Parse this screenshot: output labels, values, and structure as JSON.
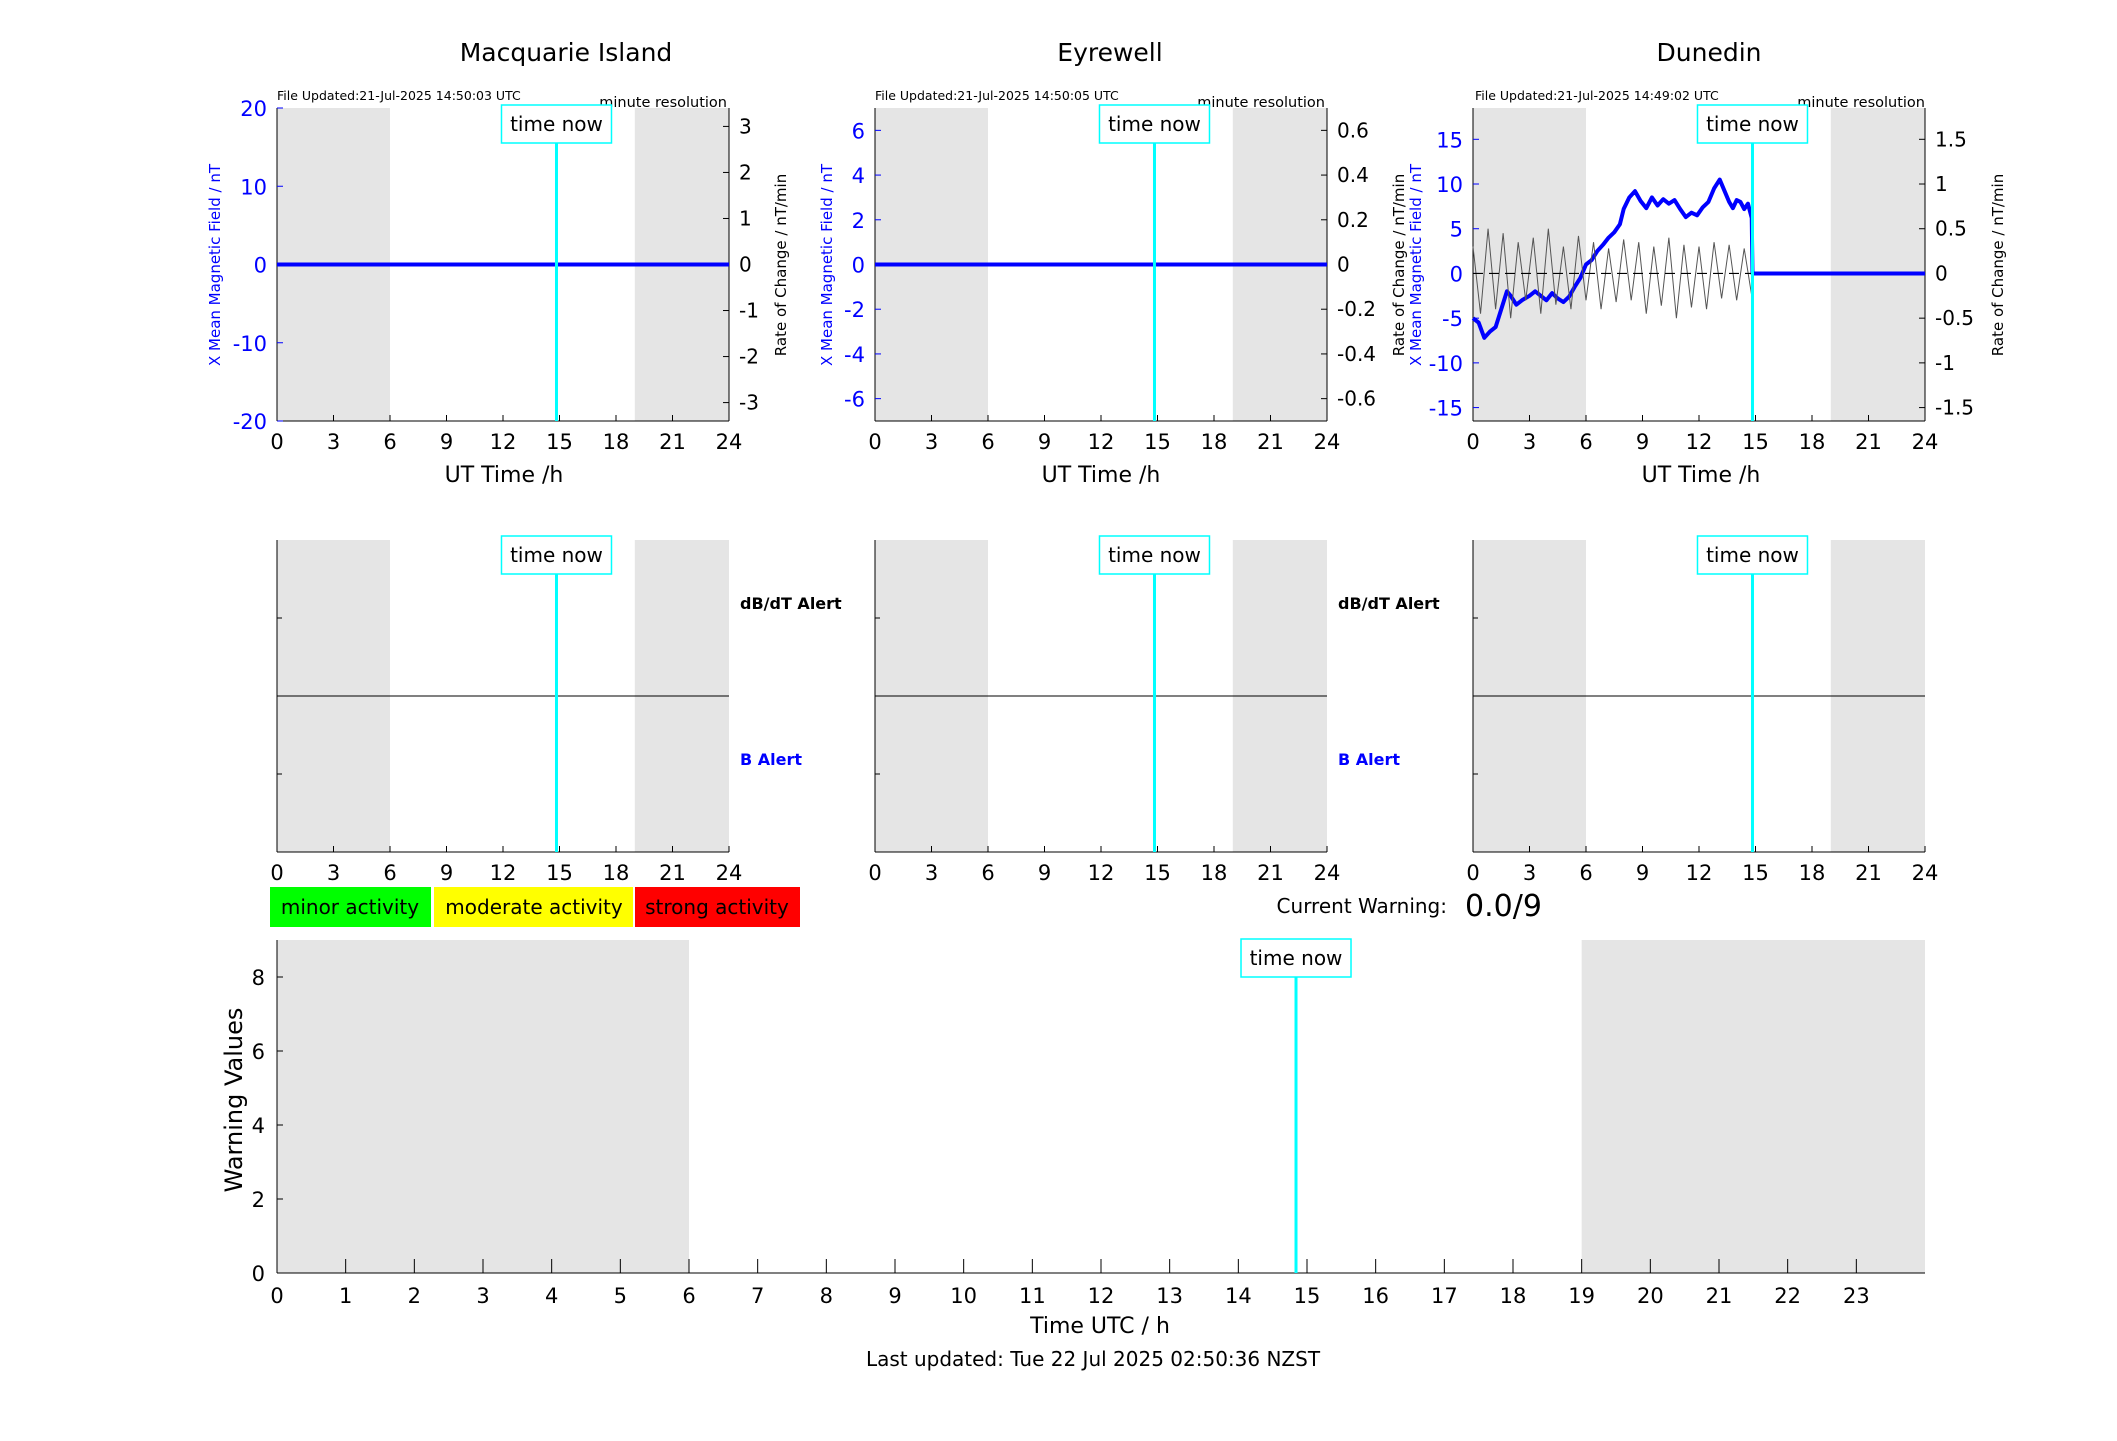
{
  "colors": {
    "shade": "#e5e5e5",
    "time_now": "#00ffff",
    "blue": "#0000ff",
    "black": "#000000",
    "minor": "#00ff00",
    "moderate": "#ffff00",
    "strong": "#ff0000"
  },
  "common": {
    "time_now_label": "time now",
    "minute_resolution": "minute resolution",
    "ut_xlabel": "UT Time /h",
    "left_ylabel": "X Mean Magnetic Field / nT",
    "right_ylabel": "Rate of Change / nT/min",
    "dbdt_alert": "dB/dT Alert",
    "b_alert": "B Alert"
  },
  "legend": {
    "minor": "minor activity",
    "moderate": "moderate activity",
    "strong": "strong activity"
  },
  "current_warning": {
    "label": "Current Warning:",
    "value": "0.0/9"
  },
  "footer": {
    "last_updated": "Last updated: Tue 22 Jul 2025 02:50:36 NZST"
  },
  "chart_data": [
    {
      "type": "line",
      "title": "Macquarie Island",
      "file_updated": "File Updated:21-Jul-2025 14:50:03 UTC",
      "xlim": [
        0,
        24
      ],
      "xticks": [
        0,
        3,
        6,
        9,
        12,
        15,
        18,
        21,
        24
      ],
      "ylim_left": [
        -20,
        20
      ],
      "yticks_left": [
        -20,
        -10,
        0,
        10,
        20
      ],
      "ylim_right": [
        -3.4,
        3.4
      ],
      "yticks_right": [
        -3,
        -2,
        -1,
        0,
        1,
        2,
        3
      ],
      "yticklabels_right": [
        "-3",
        "-2",
        "-1",
        "0",
        "1",
        "2",
        "3"
      ],
      "shaded": [
        [
          0,
          6
        ],
        [
          19,
          24
        ]
      ],
      "time_now": 14.84,
      "series": [
        {
          "axis": "left",
          "x": [
            0,
            24
          ],
          "y": [
            0,
            0
          ]
        }
      ]
    },
    {
      "type": "line",
      "title": "Eyrewell",
      "file_updated": "File Updated:21-Jul-2025 14:50:05 UTC",
      "xlim": [
        0,
        24
      ],
      "xticks": [
        0,
        3,
        6,
        9,
        12,
        15,
        18,
        21,
        24
      ],
      "ylim_left": [
        -7,
        7
      ],
      "yticks_left": [
        -6,
        -4,
        -2,
        0,
        2,
        4,
        6
      ],
      "ylim_right": [
        -0.7,
        0.7
      ],
      "yticks_right": [
        -0.6,
        -0.4,
        -0.2,
        0,
        0.2,
        0.4,
        0.6
      ],
      "yticklabels_right": [
        "-0.6",
        "-0.4",
        "-0.2",
        "0",
        "0.2",
        "0.4",
        "0.6"
      ],
      "shaded": [
        [
          0,
          6
        ],
        [
          19,
          24
        ]
      ],
      "time_now": 14.84,
      "series": [
        {
          "axis": "left",
          "x": [
            0,
            24
          ],
          "y": [
            0,
            0
          ]
        }
      ]
    },
    {
      "type": "line",
      "title": "Dunedin",
      "file_updated": "File Updated:21-Jul-2025 14:49:02 UTC",
      "xlim": [
        0,
        24
      ],
      "xticks": [
        0,
        3,
        6,
        9,
        12,
        15,
        18,
        21,
        24
      ],
      "ylim_left": [
        -16.5,
        18.5
      ],
      "yticks_left": [
        -15,
        -10,
        -5,
        0,
        5,
        10,
        15
      ],
      "ylim_right": [
        -1.65,
        1.85
      ],
      "yticks_right": [
        -1.5,
        -1,
        -0.5,
        0,
        0.5,
        1,
        1.5
      ],
      "yticklabels_right": [
        "-1.5",
        "-1",
        "-0.5",
        "0",
        "0.5",
        "1",
        "1.5"
      ],
      "shaded": [
        [
          0,
          6
        ],
        [
          19,
          24
        ]
      ],
      "time_now": 14.84,
      "series": [
        {
          "axis": "left",
          "x": [
            0,
            0.3,
            0.6,
            0.9,
            1.2,
            1.5,
            1.8,
            2.0,
            2.3,
            2.6,
            3.0,
            3.3,
            3.6,
            3.9,
            4.2,
            4.5,
            4.8,
            5.1,
            5.4,
            5.7,
            6.0,
            6.3,
            6.6,
            6.9,
            7.2,
            7.5,
            7.8,
            8.0,
            8.3,
            8.6,
            8.9,
            9.2,
            9.5,
            9.8,
            10.1,
            10.4,
            10.7,
            11.0,
            11.3,
            11.6,
            11.9,
            12.2,
            12.5,
            12.8,
            13.1,
            13.4,
            13.6,
            13.8,
            14.0,
            14.2,
            14.4,
            14.6,
            14.8,
            14.84,
            15,
            24
          ],
          "y": [
            -5,
            -5.5,
            -7.2,
            -6.5,
            -6,
            -4,
            -2,
            -2.5,
            -3.5,
            -3.0,
            -2.5,
            -2,
            -2.5,
            -3,
            -2.2,
            -2.8,
            -3.2,
            -2.6,
            -1.5,
            -0.5,
            1,
            1.5,
            2.5,
            3.2,
            4,
            4.6,
            5.5,
            7.2,
            8.5,
            9.2,
            8.1,
            7.3,
            8.5,
            7.6,
            8.3,
            7.8,
            8.2,
            7.2,
            6.3,
            6.8,
            6.5,
            7.4,
            8.0,
            9.5,
            10.5,
            9.0,
            8.0,
            7.3,
            8.2,
            8.0,
            7.2,
            7.8,
            6.2,
            0,
            0,
            0
          ]
        },
        {
          "axis": "right",
          "x": [
            0,
            0.4,
            0.8,
            1.2,
            1.6,
            2.0,
            2.4,
            2.8,
            3.2,
            3.6,
            4.0,
            4.4,
            4.8,
            5.2,
            5.6,
            6.0,
            6.4,
            6.8,
            7.2,
            7.6,
            8.0,
            8.4,
            8.8,
            9.2,
            9.6,
            10.0,
            10.4,
            10.8,
            11.2,
            11.6,
            12.0,
            12.4,
            12.8,
            13.2,
            13.6,
            14.0,
            14.4,
            14.8
          ],
          "y": [
            0.3,
            -0.45,
            0.5,
            -0.4,
            0.45,
            -0.5,
            0.35,
            -0.3,
            0.4,
            -0.45,
            0.5,
            -0.35,
            0.3,
            -0.4,
            0.42,
            -0.3,
            0.35,
            -0.4,
            0.28,
            -0.32,
            0.38,
            -0.3,
            0.35,
            -0.45,
            0.3,
            -0.36,
            0.4,
            -0.5,
            0.32,
            -0.38,
            0.3,
            -0.4,
            0.35,
            -0.28,
            0.32,
            -0.3,
            0.28,
            -0.25
          ]
        },
        {
          "axis": "right",
          "style": "dashed",
          "x": [
            0,
            14.84
          ],
          "y": [
            0,
            0
          ]
        }
      ]
    },
    {
      "type": "line",
      "xlim": [
        0,
        24
      ],
      "xticks": [
        0,
        3,
        6,
        9,
        12,
        15,
        18,
        21,
        24
      ],
      "shaded": [
        [
          0,
          6
        ],
        [
          19,
          24
        ]
      ],
      "time_now": 14.84,
      "hline": 0.5
    },
    {
      "type": "line",
      "xlim": [
        0,
        24
      ],
      "xticks": [
        0,
        3,
        6,
        9,
        12,
        15,
        18,
        21,
        24
      ],
      "shaded": [
        [
          0,
          6
        ],
        [
          19,
          24
        ]
      ],
      "time_now": 14.84,
      "hline": 0.5
    },
    {
      "type": "line",
      "xlim": [
        0,
        24
      ],
      "xticks": [
        0,
        3,
        6,
        9,
        12,
        15,
        18,
        21,
        24
      ],
      "shaded": [
        [
          0,
          6
        ],
        [
          19,
          24
        ]
      ],
      "time_now": 14.84,
      "hline": 0.5
    },
    {
      "type": "bar",
      "xlabel": "Time UTC / h",
      "ylabel": "Warning Values",
      "xlim": [
        0,
        24
      ],
      "xticks": [
        0,
        1,
        2,
        3,
        4,
        5,
        6,
        7,
        8,
        9,
        10,
        11,
        12,
        13,
        14,
        15,
        16,
        17,
        18,
        19,
        20,
        21,
        22,
        23
      ],
      "ylim": [
        0,
        9
      ],
      "yticks": [
        0,
        2,
        4,
        6,
        8
      ],
      "shaded": [
        [
          0,
          6
        ],
        [
          19,
          24
        ]
      ],
      "time_now": 14.84,
      "values": []
    }
  ]
}
